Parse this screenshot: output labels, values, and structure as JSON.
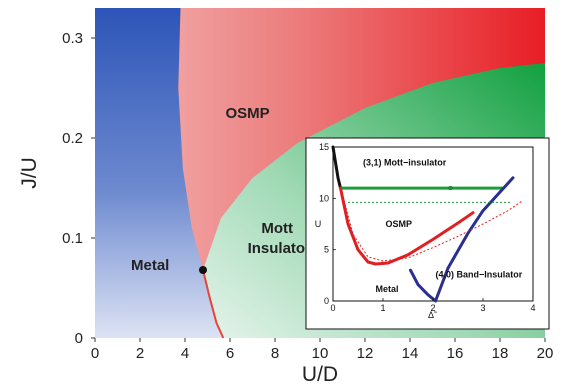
{
  "chart_data": [
    {
      "type": "heatmap",
      "xlabel": "U/D",
      "ylabel": "J/U",
      "xlim": [
        0,
        20
      ],
      "ylim": [
        0,
        0.33
      ],
      "x_ticks": [
        "0",
        "2",
        "4",
        "6",
        "8",
        "10",
        "12",
        "14",
        "16",
        "18",
        "20"
      ],
      "y_ticks": [
        "0",
        "0.1",
        "0.2",
        "0.3"
      ],
      "regions": [
        {
          "label": "Metal",
          "color": "#3a5fc0",
          "label_at": {
            "x": 1.6,
            "y": 0.068
          }
        },
        {
          "label": "OSMP",
          "color": "#e8262b",
          "label_at": {
            "x": 5.8,
            "y": 0.22
          }
        },
        {
          "label_lines": [
            "Mott",
            "Insulator"
          ],
          "color": "#1ea34a",
          "label_at": {
            "x": 7.3,
            "y": 0.085
          }
        }
      ],
      "metal_osmp_boundary": {
        "x": [
          3.8,
          3.7,
          3.9,
          4.3,
          4.8
        ],
        "y": [
          0.33,
          0.25,
          0.17,
          0.11,
          0.068
        ]
      },
      "critical_point": {
        "x": 4.8,
        "y": 0.068
      },
      "osmp_mott_boundary": {
        "x": [
          4.8,
          5.6,
          7,
          9,
          12,
          15,
          18,
          20
        ],
        "y": [
          0.068,
          0.12,
          0.16,
          0.195,
          0.23,
          0.255,
          0.27,
          0.275
        ]
      },
      "critical_line": {
        "x": [
          4.8,
          5.1,
          5.4,
          5.7
        ],
        "y": [
          0.068,
          0.04,
          0.015,
          0.0
        ]
      }
    },
    {
      "type": "line",
      "xlabel": "Δ̃",
      "ylabel": "U",
      "xlim": [
        0,
        4
      ],
      "ylim": [
        0,
        15
      ],
      "x_ticks": [
        "0",
        "1",
        "2",
        "3",
        "4"
      ],
      "y_ticks": [
        "0",
        "5",
        "10",
        "15"
      ],
      "labels": [
        {
          "text": "(3,1) Mott−insulator",
          "x": 0.6,
          "y": 13.2
        },
        {
          "text": "OSMP",
          "x": 1.05,
          "y": 7.2
        },
        {
          "text": "(4,0) Band−Insulator",
          "x": 2.05,
          "y": 2.3
        },
        {
          "text": "Metal",
          "x": 0.85,
          "y": 0.9
        }
      ],
      "series": [
        {
          "color": "#111111",
          "x": [
            0.0,
            0.05,
            0.1,
            0.15
          ],
          "y": [
            15,
            13.5,
            12,
            11
          ]
        },
        {
          "color": "#1a9e3a",
          "x": [
            0.15,
            3.4
          ],
          "y": [
            11,
            11
          ]
        },
        {
          "color": "#e02020",
          "x": [
            0.15,
            0.3,
            0.5,
            0.7,
            0.85,
            1.1,
            1.5,
            2.0,
            2.5,
            2.8
          ],
          "y": [
            11,
            7.5,
            5.0,
            3.8,
            3.6,
            3.7,
            4.5,
            6.0,
            7.6,
            8.6
          ]
        },
        {
          "color": "#2a2f8f",
          "x": [
            1.55,
            1.7,
            1.9,
            2.0,
            2.05,
            2.3,
            2.7,
            3.0,
            3.3,
            3.6
          ],
          "y": [
            3.0,
            1.6,
            0.6,
            0.2,
            0.0,
            3.2,
            6.6,
            8.8,
            10.4,
            12.0
          ]
        },
        {
          "color": "#1a9e3a",
          "dashed": true,
          "x": [
            0.3,
            3.55
          ],
          "y": [
            9.6,
            9.6
          ]
        },
        {
          "color": "#e02020",
          "dashed": true,
          "x": [
            0.2,
            0.4,
            0.7,
            1.0,
            1.5,
            2.0,
            2.5,
            3.0,
            3.5,
            3.8
          ],
          "y": [
            10.2,
            6.5,
            4.3,
            3.9,
            4.2,
            5.2,
            6.3,
            7.5,
            8.8,
            9.8
          ]
        }
      ],
      "markers": [
        {
          "x": 2.35,
          "y": 11.0
        }
      ]
    }
  ]
}
